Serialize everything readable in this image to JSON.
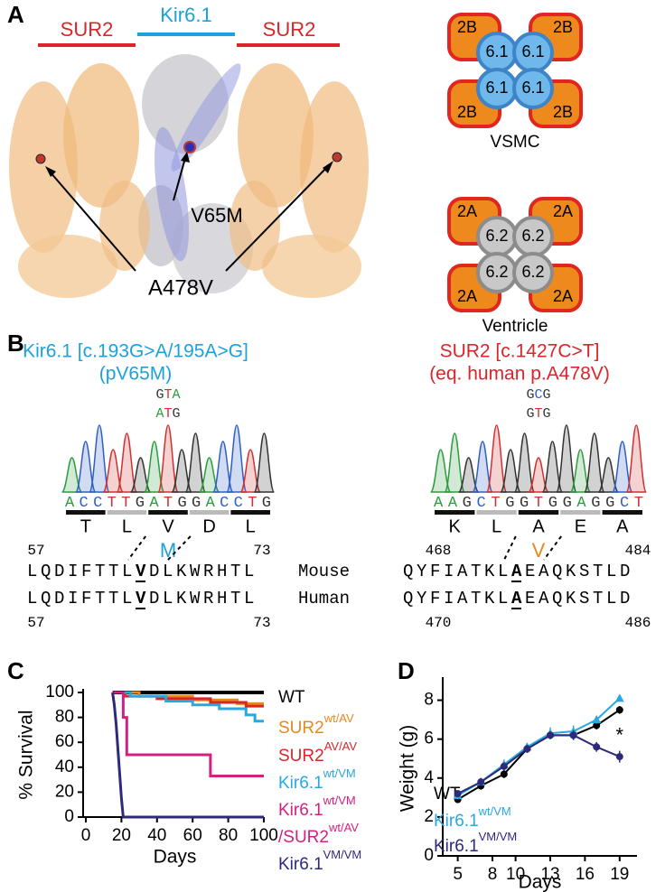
{
  "panel_labels": [
    "A",
    "B",
    "C",
    "D"
  ],
  "structure": {
    "subunit_left": "SUR2",
    "pore": "Kir6.1",
    "subunit_right": "SUR2",
    "mutation_pore": "V65M",
    "mutation_subunit": "A478V"
  },
  "tetramers": [
    {
      "subunits": [
        "2B",
        "2B",
        "2B",
        "2B"
      ],
      "pores": [
        "6.1",
        "6.1",
        "6.1",
        "6.1"
      ],
      "label": "VSMC"
    },
    {
      "subunits": [
        "2A",
        "2A",
        "2A",
        "2A"
      ],
      "pores": [
        "6.2",
        "6.2",
        "6.2",
        "6.2"
      ],
      "label": "Ventricle"
    }
  ],
  "sequencing": [
    {
      "title": [
        "Kir6.1 [c.193G>A/195A>G]",
        "(pV65M)"
      ],
      "codons": [
        "GTA",
        "ATG"
      ],
      "trace": "ACCTTGATGGACCTG",
      "residues": [
        "T",
        "L",
        "V",
        "D",
        "L"
      ],
      "substitution": "M",
      "mouse_range": [
        57,
        73
      ],
      "human_range": [
        57,
        73
      ],
      "rows": [
        {
          "before": "LQDIFTTL",
          "site": "V",
          "after": "DLKWRHTL"
        },
        {
          "before": "LQDIFTTL",
          "site": "V",
          "after": "DLKWRHTL"
        }
      ]
    },
    {
      "title": [
        "SUR2 [c.1427C>T]",
        "(eq. human p.A478V)"
      ],
      "codons": [
        "GCG",
        "GTG"
      ],
      "trace": "AAGCTGGTGGAGGCT",
      "residues": [
        "K",
        "L",
        "A",
        "E",
        "A"
      ],
      "substitution": "V",
      "mouse_range": [
        468,
        484
      ],
      "human_range": [
        470,
        486
      ],
      "rows": [
        {
          "before": "QYFIATKL",
          "site": "A",
          "after": "EAQKSTLD"
        },
        {
          "before": "QYFIATKL",
          "site": "A",
          "after": "EAQKSTLD"
        }
      ]
    }
  ],
  "species": [
    "Mouse",
    "Human"
  ],
  "chart_data": [
    {
      "type": "line",
      "ylabel": "% Survival",
      "xlabel": "Days",
      "xlim": [
        0,
        100
      ],
      "xticks": [
        0,
        20,
        40,
        60,
        80,
        100
      ],
      "ylim": [
        0,
        100
      ],
      "yticks": [
        0,
        20,
        40,
        60,
        80,
        100
      ],
      "series": [
        {
          "name": [
            "WT"
          ],
          "color": "#000000",
          "x": [
            15,
            100
          ],
          "values": [
            100,
            100
          ]
        },
        {
          "name": [
            "SUR2"
          ],
          "superscript": [
            "wt/AV"
          ],
          "color": "#e8891c",
          "x": [
            15,
            30,
            30,
            60,
            60,
            85,
            85,
            100
          ],
          "values": [
            100,
            100,
            97,
            97,
            94,
            94,
            91,
            91
          ]
        },
        {
          "name": [
            "SUR2"
          ],
          "superscript": [
            "AV/AV"
          ],
          "color": "#d8262a",
          "x": [
            15,
            22,
            22,
            40,
            40,
            70,
            70,
            90,
            90,
            100
          ],
          "values": [
            100,
            100,
            97,
            97,
            95,
            95,
            92,
            92,
            89,
            89
          ]
        },
        {
          "name": [
            "Kir6.1"
          ],
          "superscript": [
            "wt/VM"
          ],
          "color": "#29a8e0",
          "x": [
            15,
            25,
            25,
            45,
            45,
            60,
            60,
            75,
            75,
            90,
            90,
            95,
            95,
            100
          ],
          "values": [
            100,
            100,
            97,
            97,
            93,
            93,
            90,
            90,
            87,
            87,
            82,
            82,
            77,
            77
          ]
        },
        {
          "name": [
            "Kir6.1",
            "/SUR2"
          ],
          "superscript": [
            "wt/VM",
            "wt/AV"
          ],
          "color": "#d4207f",
          "x": [
            15,
            21,
            21,
            23,
            23,
            70,
            70,
            100
          ],
          "values": [
            100,
            100,
            80,
            80,
            50,
            50,
            33,
            33
          ]
        },
        {
          "name": [
            "Kir6.1"
          ],
          "superscript": [
            "VM/VM"
          ],
          "color": "#2d2a7a",
          "x": [
            15,
            16,
            17,
            18,
            19,
            20,
            21,
            100
          ],
          "values": [
            100,
            90,
            75,
            55,
            35,
            15,
            0,
            0
          ]
        }
      ]
    },
    {
      "type": "errorline",
      "ylabel": "Weight (g)",
      "xlabel": "Days",
      "annotation": "*",
      "xlim": [
        3.7,
        20.5
      ],
      "xticks": [
        5,
        8,
        10,
        13,
        16,
        19
      ],
      "ylim": [
        0,
        9
      ],
      "yticks": [
        0,
        2,
        4,
        6,
        8
      ],
      "x": [
        5,
        7,
        9,
        11,
        13,
        15,
        17,
        19
      ],
      "series": [
        {
          "name": [
            "WT"
          ],
          "color": "#000000",
          "marker": "circle",
          "values": [
            2.9,
            3.6,
            4.2,
            5.5,
            6.2,
            6.2,
            6.7,
            7.5
          ],
          "errors": [
            0.15,
            0.2,
            0.2,
            0.2,
            0.2,
            0.2,
            0.2,
            0.2
          ]
        },
        {
          "name": [
            "Kir6.1"
          ],
          "superscript": [
            "wt/VM"
          ],
          "color": "#29a8e0",
          "marker": "triangle",
          "values": [
            3.1,
            3.8,
            4.7,
            5.6,
            6.3,
            6.4,
            7.0,
            8.1
          ],
          "errors": [
            0.15,
            0.2,
            0.25,
            0.2,
            0.3,
            0.3,
            0.2,
            0.15
          ]
        },
        {
          "name": [
            "Kir6.1"
          ],
          "superscript": [
            "VM/VM"
          ],
          "color": "#2d2a7a",
          "marker": "circle",
          "values": [
            3.2,
            3.8,
            4.6,
            5.5,
            6.2,
            6.2,
            5.6,
            5.1
          ],
          "errors": [
            0.15,
            0.2,
            0.2,
            0.2,
            0.2,
            0.25,
            0.25,
            0.3
          ]
        }
      ]
    }
  ]
}
